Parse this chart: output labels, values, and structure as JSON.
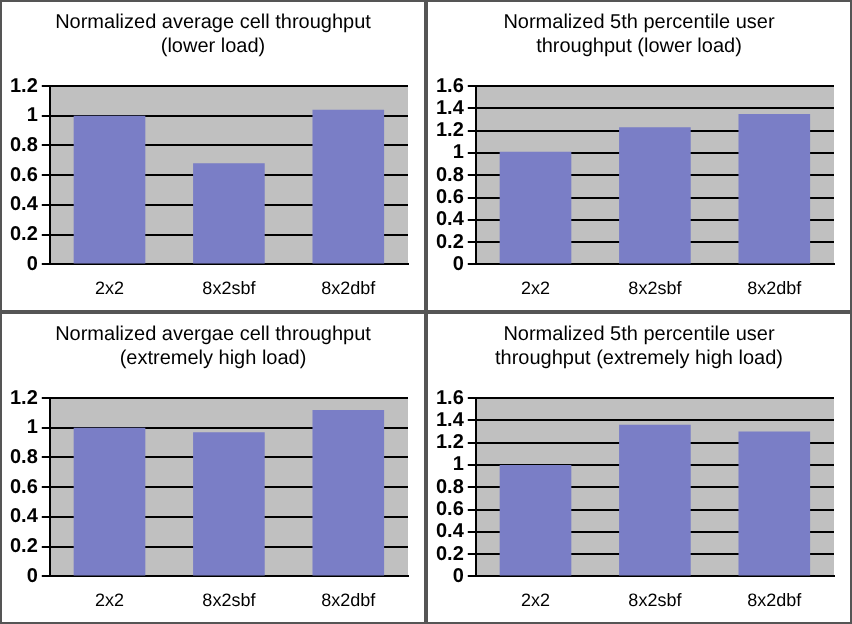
{
  "chart_data": [
    {
      "type": "bar",
      "title": "Normalized average cell throughput (lower load)",
      "categories": [
        "2x2",
        "8x2sbf",
        "8x2dbf"
      ],
      "values": [
        1.0,
        0.68,
        1.04
      ],
      "color": "#7a7ec6",
      "ylim": [
        0,
        1.2
      ],
      "yticks": [
        0,
        0.2,
        0.4,
        0.6,
        0.8,
        1,
        1.2
      ],
      "grid": "y",
      "legend": false
    },
    {
      "type": "bar",
      "title": "Normalized 5th percentile user throughput (lower load)",
      "categories": [
        "2x2",
        "8x2sbf",
        "8x2dbf"
      ],
      "values": [
        1.01,
        1.23,
        1.35
      ],
      "color": "#7a7ec6",
      "ylim": [
        0,
        1.6
      ],
      "yticks": [
        0,
        0.2,
        0.4,
        0.6,
        0.8,
        1,
        1.2,
        1.4,
        1.6
      ],
      "grid": "y",
      "legend": false
    },
    {
      "type": "bar",
      "title": "Normalized avergae cell throughput (extremely high load)",
      "categories": [
        "2x2",
        "8x2sbf",
        "8x2dbf"
      ],
      "values": [
        1.0,
        0.97,
        1.12
      ],
      "color": "#7a7ec6",
      "ylim": [
        0,
        1.2
      ],
      "yticks": [
        0,
        0.2,
        0.4,
        0.6,
        0.8,
        1,
        1.2
      ],
      "grid": "y",
      "legend": false
    },
    {
      "type": "bar",
      "title": "Normalized 5th percentile user throughput (extremely high load)",
      "categories": [
        "2x2",
        "8x2sbf",
        "8x2dbf"
      ],
      "values": [
        1.0,
        1.36,
        1.3
      ],
      "color": "#7a7ec6",
      "ylim": [
        0,
        1.6
      ],
      "yticks": [
        0,
        0.2,
        0.4,
        0.6,
        0.8,
        1,
        1.2,
        1.4,
        1.6
      ],
      "grid": "y",
      "legend": false
    }
  ]
}
